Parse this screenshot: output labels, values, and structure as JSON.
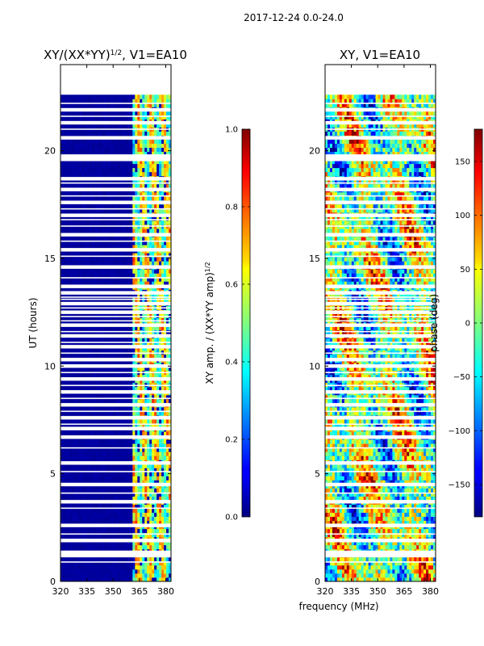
{
  "figure": {
    "suptitle": "2017-12-24 0.0-24.0",
    "shared_xlabel": "frequency (MHz)"
  },
  "chart_data": [
    {
      "type": "heatmap",
      "id": "left",
      "title_main": "XY/(XX*YY)",
      "title_sup": "1/2",
      "title_tail": ", V1=EA10",
      "ylabel": "UT (hours)",
      "xlim": [
        320,
        383
      ],
      "ylim": [
        0,
        24
      ],
      "xticks": [
        320,
        335,
        350,
        365,
        380
      ],
      "yticks": [
        0,
        5,
        10,
        15,
        20
      ],
      "data_top": 22.6,
      "active_band_mhz": [
        361,
        383
      ],
      "colorbar": {
        "label_main": "XY amp. / (XX*YY amp)",
        "label_sup": "1/2",
        "range": [
          0.0,
          1.0
        ],
        "ticks": [
          0.0,
          0.2,
          0.4,
          0.6,
          0.8,
          1.0
        ],
        "tick_labels": [
          "0.0",
          "0.2",
          "0.4",
          "0.6",
          "0.8",
          "1.0"
        ],
        "colormap": "jet"
      }
    },
    {
      "type": "heatmap",
      "id": "right",
      "title": "XY, V1=EA10",
      "xlim": [
        320,
        383
      ],
      "ylim": [
        0,
        24
      ],
      "xticks": [
        320,
        335,
        350,
        365,
        380
      ],
      "yticks": [
        0,
        5,
        10,
        15,
        20
      ],
      "data_top": 22.6,
      "colorbar": {
        "label": "phase (deg)",
        "range": [
          -180,
          180
        ],
        "ticks": [
          150,
          100,
          50,
          0,
          -50,
          -100,
          -150
        ],
        "tick_labels": [
          "150",
          "100",
          "50",
          "0",
          "−50",
          "−100",
          "−150"
        ],
        "colormap": "jet"
      }
    }
  ],
  "gap_rows_ut": [
    1.2,
    1.35,
    1.9,
    2.6,
    3.7,
    4.5,
    5.5,
    6.7,
    7.1,
    7.6,
    8.2,
    8.8,
    9.4,
    10.0,
    10.3,
    10.9,
    11.4,
    11.9,
    12.5,
    12.9,
    13.4,
    13.7,
    14.6,
    15.4,
    16.1,
    17.0,
    17.6,
    18.2,
    18.7,
    19.6,
    19.75,
    20.6,
    21.3,
    21.9
  ],
  "thin_gap_rows_ut": [
    0.9,
    2.2,
    3.4,
    4.1,
    5.1,
    6.2,
    7.3,
    7.9,
    8.5,
    9.1,
    9.7,
    10.6,
    11.1,
    11.6,
    12.1,
    12.3,
    12.7,
    13.1,
    13.2,
    14.1,
    15.1,
    15.8,
    16.5,
    16.8,
    17.3,
    17.9,
    18.5,
    21.0,
    21.6,
    22.2
  ]
}
